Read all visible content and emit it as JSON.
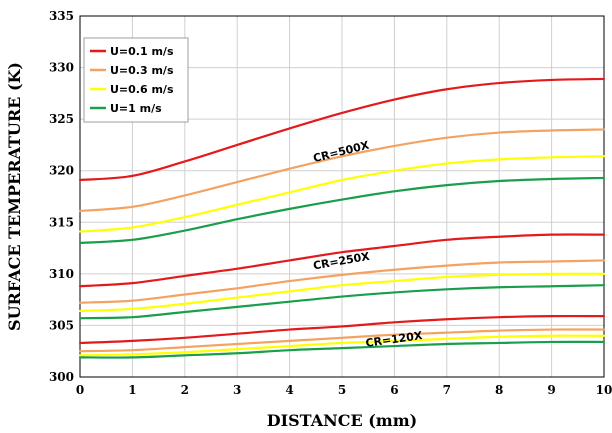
{
  "chart_data": {
    "type": "line",
    "title": "",
    "xlabel": "DISTANCE (mm)",
    "ylabel": "SURFACE TEMPERATURE (K)",
    "xlim": [
      0,
      10
    ],
    "ylim": [
      300,
      335
    ],
    "x_ticks": [
      0,
      1,
      2,
      3,
      4,
      5,
      6,
      7,
      8,
      9,
      10
    ],
    "y_ticks": [
      300,
      305,
      310,
      315,
      320,
      325,
      330,
      335
    ],
    "grid": true,
    "legend_position": "top-left",
    "legend": [
      {
        "label": "U=0.1 m/s",
        "color": "#e31a1c"
      },
      {
        "label": "U=0.3 m/s",
        "color": "#f4a261"
      },
      {
        "label": "U=0.6 m/s",
        "color": "#ffff00"
      },
      {
        "label": "U=1 m/s",
        "color": "#1a9e4a"
      }
    ],
    "x": [
      0,
      1,
      2,
      3,
      4,
      5,
      6,
      7,
      8,
      9,
      10
    ],
    "groups": [
      {
        "label": "CR=500X",
        "label_pos": {
          "x": 5.0,
          "y": 321.5
        },
        "label_rotate": -14,
        "series": [
          {
            "name": "U=0.1 m/s",
            "color": "#e31a1c",
            "values": [
              319.1,
              319.5,
              320.9,
              322.5,
              324.1,
              325.6,
              326.9,
              327.9,
              328.5,
              328.8,
              328.9
            ]
          },
          {
            "name": "U=0.3 m/s",
            "color": "#f4a261",
            "values": [
              316.1,
              316.5,
              317.6,
              318.9,
              320.2,
              321.4,
              322.4,
              323.2,
              323.7,
              323.9,
              324.0
            ]
          },
          {
            "name": "U=0.6 m/s",
            "color": "#ffff00",
            "values": [
              314.1,
              314.5,
              315.5,
              316.7,
              317.9,
              319.1,
              320.0,
              320.7,
              321.1,
              321.3,
              321.4
            ]
          },
          {
            "name": "U=1 m/s",
            "color": "#1a9e4a",
            "values": [
              313.0,
              313.3,
              314.2,
              315.3,
              316.3,
              317.2,
              318.0,
              318.6,
              319.0,
              319.2,
              319.3
            ]
          }
        ]
      },
      {
        "label": "CR=250X",
        "label_pos": {
          "x": 5.0,
          "y": 310.9
        },
        "label_rotate": -10,
        "series": [
          {
            "name": "U=0.1 m/s",
            "color": "#e31a1c",
            "values": [
              308.8,
              309.1,
              309.8,
              310.5,
              311.3,
              312.1,
              312.7,
              313.3,
              313.6,
              313.8,
              313.8
            ]
          },
          {
            "name": "U=0.3 m/s",
            "color": "#f4a261",
            "values": [
              307.2,
              307.4,
              308.0,
              308.6,
              309.3,
              309.9,
              310.4,
              310.8,
              311.1,
              311.2,
              311.3
            ]
          },
          {
            "name": "U=0.6 m/s",
            "color": "#ffff00",
            "values": [
              306.4,
              306.6,
              307.1,
              307.7,
              308.3,
              308.9,
              309.3,
              309.7,
              309.9,
              310.0,
              310.0
            ]
          },
          {
            "name": "U=1 m/s",
            "color": "#1a9e4a",
            "values": [
              305.7,
              305.8,
              306.3,
              306.8,
              307.3,
              307.8,
              308.2,
              308.5,
              308.7,
              308.8,
              308.9
            ]
          }
        ]
      },
      {
        "label": "CR=120X",
        "label_pos": {
          "x": 6.0,
          "y": 303.3
        },
        "label_rotate": -8,
        "series": [
          {
            "name": "U=0.1 m/s",
            "color": "#e31a1c",
            "values": [
              303.3,
              303.5,
              303.8,
              304.2,
              304.6,
              304.9,
              305.3,
              305.6,
              305.8,
              305.9,
              305.9
            ]
          },
          {
            "name": "U=0.3 m/s",
            "color": "#f4a261",
            "values": [
              302.5,
              302.6,
              302.9,
              303.2,
              303.5,
              303.8,
              304.1,
              304.3,
              304.5,
              304.6,
              304.6
            ]
          },
          {
            "name": "U=0.6 m/s",
            "color": "#ffff00",
            "values": [
              302.1,
              302.2,
              302.4,
              302.7,
              303.0,
              303.3,
              303.5,
              303.7,
              303.9,
              304.0,
              304.0
            ]
          },
          {
            "name": "U=1 m/s",
            "color": "#1a9e4a",
            "values": [
              301.9,
              301.9,
              302.1,
              302.3,
              302.6,
              302.8,
              303.0,
              303.2,
              303.3,
              303.4,
              303.4
            ]
          }
        ]
      }
    ]
  }
}
